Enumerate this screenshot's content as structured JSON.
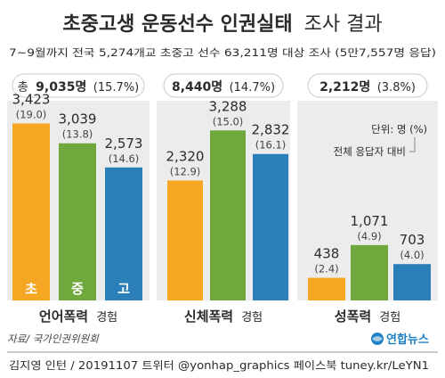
{
  "header": {
    "title_main": "초중고생 운동선수 인권실태",
    "title_sub": "조사 결과",
    "subtitle": "7~9월까지 전국 5,274개교 초중고 선수 63,211명 대상 조사 (5만7,557명 응답)"
  },
  "legend": {
    "unit": "단위: 명 (%)",
    "pct_note": "전체 응답자 대비"
  },
  "chart_data": {
    "type": "bar",
    "categories": [
      "초",
      "중",
      "고"
    ],
    "colors": [
      "#f5a623",
      "#6fa83c",
      "#2a7fb8"
    ],
    "groups": [
      {
        "name": "언어폭력",
        "suffix": "경험",
        "total_label": "총",
        "total_value": "9,035명",
        "total_pct": "(15.7%)",
        "values": [
          3423,
          3039,
          2573
        ],
        "value_labels": [
          "3,423",
          "3,039",
          "2,573"
        ],
        "pct_labels": [
          "(19.0)",
          "(13.8)",
          "(14.6)"
        ]
      },
      {
        "name": "신체폭력",
        "suffix": "경험",
        "total_label": "",
        "total_value": "8,440명",
        "total_pct": "(14.7%)",
        "values": [
          2320,
          3288,
          2832
        ],
        "value_labels": [
          "2,320",
          "3,288",
          "2,832"
        ],
        "pct_labels": [
          "(12.9)",
          "(15.0)",
          "(16.1)"
        ]
      },
      {
        "name": "성폭력",
        "suffix": "경험",
        "total_label": "",
        "total_value": "2,212명",
        "total_pct": "(3.8%)",
        "values": [
          438,
          1071,
          703
        ],
        "value_labels": [
          "438",
          "1,071",
          "703"
        ],
        "pct_labels": [
          "(2.4)",
          "(4.9)",
          "(4.0)"
        ]
      }
    ]
  },
  "footer": {
    "source": "자료/ 국가인권위원회",
    "logo_text": "연합뉴스",
    "credit": "김지영 인턴 / 20191107  트위터 @yonhap_graphics  페이스북 tuney.kr/LeYN1"
  }
}
